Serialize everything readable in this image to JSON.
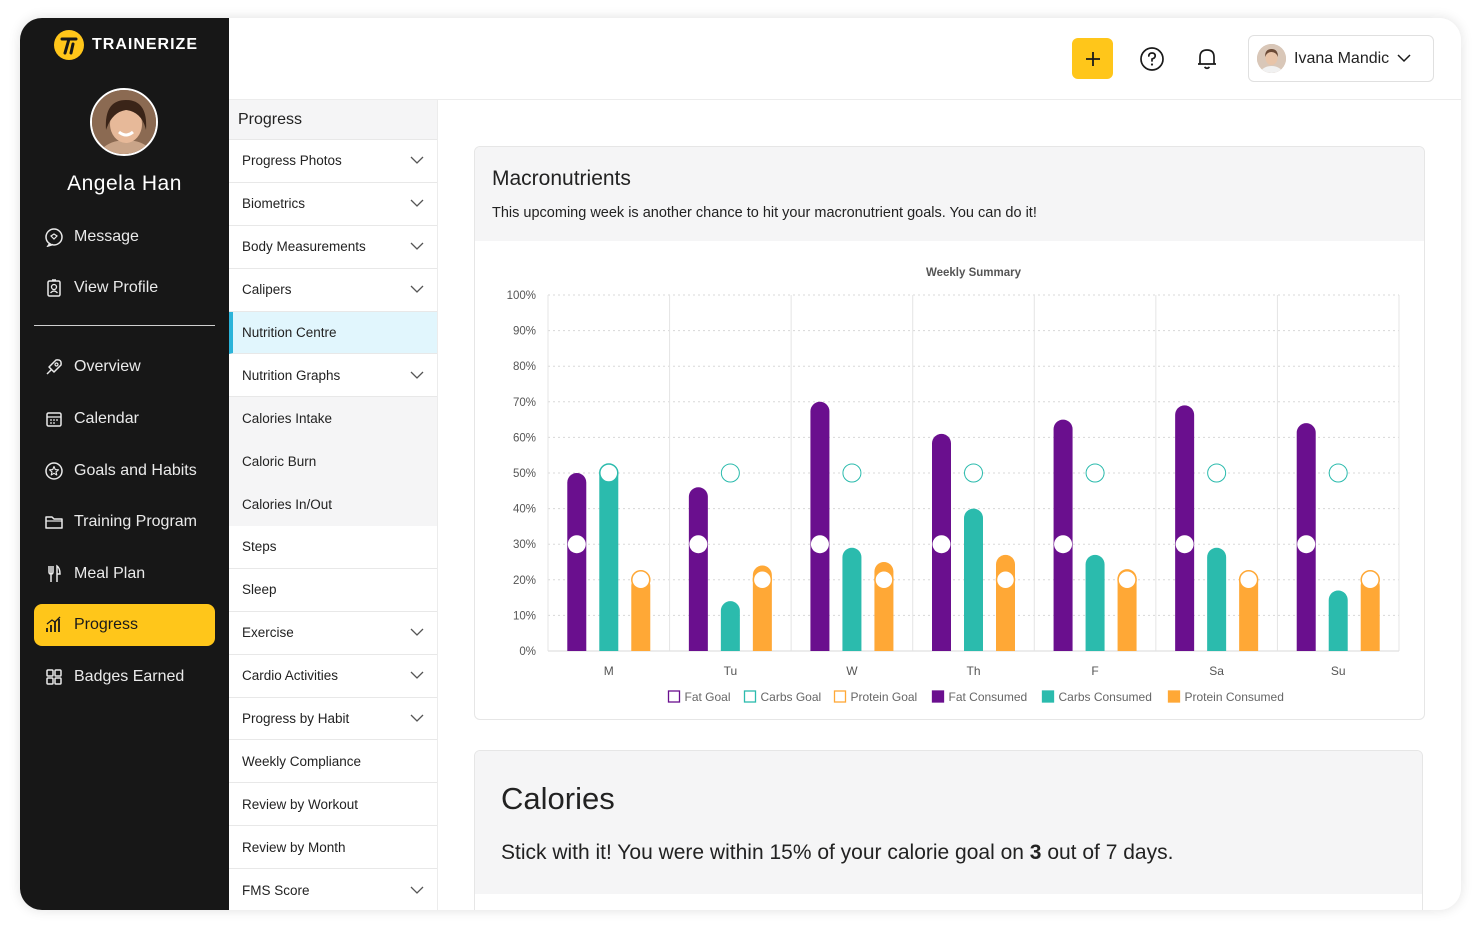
{
  "brand": {
    "name": "TRAINERIZE",
    "accent": "#ffc61a"
  },
  "client": {
    "name": "Angela Han"
  },
  "sidebar": {
    "items": [
      {
        "label": "Message",
        "icon": "chat-icon"
      },
      {
        "label": "View Profile",
        "icon": "profile-icon"
      },
      {
        "label": "Overview",
        "icon": "rocket-icon"
      },
      {
        "label": "Calendar",
        "icon": "calendar-icon"
      },
      {
        "label": "Goals and Habits",
        "icon": "star-icon"
      },
      {
        "label": "Training Program",
        "icon": "folder-icon"
      },
      {
        "label": "Meal Plan",
        "icon": "cutlery-icon"
      },
      {
        "label": "Progress",
        "icon": "bar-chart-icon",
        "active": true
      },
      {
        "label": "Badges Earned",
        "icon": "grid-icon"
      }
    ]
  },
  "topbar": {
    "user_name": "Ivana Mandic"
  },
  "submenu": {
    "title": "Progress",
    "items": [
      {
        "label": "Progress Photos",
        "chevron": true
      },
      {
        "label": "Biometrics",
        "chevron": true
      },
      {
        "label": "Body Measurements",
        "chevron": true
      },
      {
        "label": "Calipers",
        "chevron": true
      },
      {
        "label": "Nutrition Centre",
        "selected": true
      },
      {
        "label": "Nutrition Graphs",
        "chevron": true
      },
      {
        "label": "Calories Intake",
        "child": true
      },
      {
        "label": "Caloric Burn",
        "child": true
      },
      {
        "label": "Calories In/Out",
        "child": true
      },
      {
        "label": "Steps"
      },
      {
        "label": "Sleep"
      },
      {
        "label": "Exercise",
        "chevron": true
      },
      {
        "label": "Cardio Activities",
        "chevron": true
      },
      {
        "label": "Progress by Habit",
        "chevron": true
      },
      {
        "label": "Weekly Compliance"
      },
      {
        "label": "Review by Workout"
      },
      {
        "label": "Review by Month"
      },
      {
        "label": "FMS Score",
        "chevron": true
      }
    ]
  },
  "macros": {
    "title": "Macronutrients",
    "subtitle": "This upcoming week is another chance to hit your macronutrient goals. You can do it!"
  },
  "calories": {
    "title": "Calories",
    "text_before": "Stick with it! You were within 15% of your calorie goal on ",
    "count": "3",
    "text_after": " out of 7 days."
  },
  "chart_data": {
    "type": "bar",
    "title": "Weekly Summary",
    "categories": [
      "M",
      "Tu",
      "W",
      "Th",
      "F",
      "Sa",
      "Su"
    ],
    "y_ticks": [
      "0%",
      "10%",
      "20%",
      "30%",
      "40%",
      "50%",
      "60%",
      "70%",
      "80%",
      "90%",
      "100%"
    ],
    "ylim": [
      0,
      100
    ],
    "legend_position": "bottom",
    "legend": [
      "Fat Goal",
      "Carbs Goal",
      "Protein Goal",
      "Fat Consumed",
      "Carbs Consumed",
      "Protein Consumed"
    ],
    "series": [
      {
        "name": "Fat Consumed",
        "color": "#6a0f8e",
        "values": [
          50,
          46,
          70,
          61,
          65,
          69,
          64
        ]
      },
      {
        "name": "Carbs Consumed",
        "color": "#2bbbad",
        "values": [
          52,
          14,
          29,
          40,
          27,
          29,
          17
        ]
      },
      {
        "name": "Protein Consumed",
        "color": "#ffa836",
        "values": [
          21,
          24,
          25,
          27,
          23,
          22,
          21
        ]
      }
    ],
    "goals": [
      {
        "name": "Fat Goal",
        "color": "#6a0f8e",
        "values": [
          30,
          30,
          30,
          30,
          30,
          30,
          30
        ]
      },
      {
        "name": "Carbs Goal",
        "color": "#2bbbad",
        "values": [
          50,
          50,
          50,
          50,
          50,
          50,
          50
        ]
      },
      {
        "name": "Protein Goal",
        "color": "#ffa836",
        "values": [
          20,
          20,
          20,
          20,
          20,
          20,
          20
        ]
      }
    ]
  }
}
